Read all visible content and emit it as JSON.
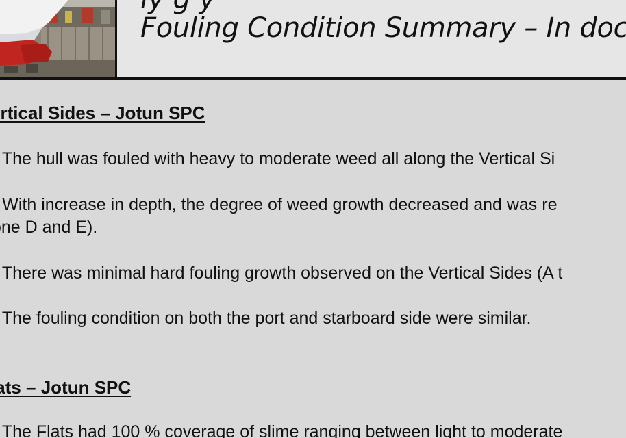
{
  "header": {
    "title_top": "ly g  y",
    "title": "Fouling Condition Summary – In docki"
  },
  "sections": [
    {
      "heading": "ertical Sides – Jotun SPC",
      "items": [
        {
          "marker": ")",
          "text": " The hull was  fouled with heavy to moderate weed all along the Vertical Si"
        },
        {
          "marker": ")",
          "text": " With increase in depth, the degree of weed growth decreased and was re",
          "continuation": "one D and E)."
        },
        {
          "marker": ")",
          "text": " There was minimal hard fouling growth observed on the Vertical Sides (A t"
        },
        {
          "marker": ")",
          "text": " The fouling condition on both the port and starboard side were similar."
        }
      ]
    },
    {
      "heading": "lats – Jotun SPC",
      "items": [
        {
          "marker": ")",
          "text": " The Flats had 100 % coverage of slime ranging between light to moderate"
        }
      ]
    }
  ],
  "colors": {
    "background": "#d9d9d9",
    "header_background": "#e6e6e6",
    "text": "#111111",
    "rule": "#111111"
  },
  "icons": {
    "header_photo": "dry-dock-ship-hull-photo"
  }
}
